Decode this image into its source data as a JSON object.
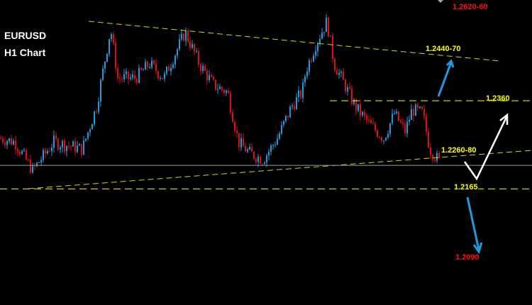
{
  "chart_data": {
    "type": "candlestick",
    "symbol": "EURUSD",
    "timeframe": "H1 Chart",
    "ylim": [
      1.1908,
      1.2583
    ],
    "close_path": [
      1.2277,
      1.2269,
      1.2206,
      1.2269,
      1.2253,
      1.2347,
      1.252,
      1.241,
      1.241,
      1.2442,
      1.241,
      1.2512,
      1.2442,
      1.2395,
      1.2379,
      1.2269,
      1.2245,
      1.223,
      1.2277,
      1.2347,
      1.2379,
      1.2426,
      1.2489,
      1.2536,
      1.2442,
      1.2395,
      1.2347,
      1.2308,
      1.2277,
      1.2332,
      1.2292,
      1.234,
      1.2332,
      1.2253,
      1.2222
    ],
    "current_price": 1.2217,
    "levels": [
      {
        "label": "1.2360",
        "price": 1.236,
        "color": "#ffff00"
      },
      {
        "label": "1.2165",
        "price": 1.2165,
        "color": "#ffff00"
      }
    ],
    "annotations": [
      {
        "label": "1.2620-60",
        "color": "#ff1010"
      },
      {
        "label": "1.2440-70",
        "color": "#ffff00"
      },
      {
        "label": "1.2260-80",
        "color": "#ffff00"
      },
      {
        "label": "1.2090",
        "color": "#ff1010"
      }
    ],
    "colors": {
      "up": "#1e9be0",
      "down": "#e01010",
      "trendline": "#d8d800",
      "arrow_bull": "#1e9be0",
      "arrow_scenario": "#ffffff"
    }
  }
}
